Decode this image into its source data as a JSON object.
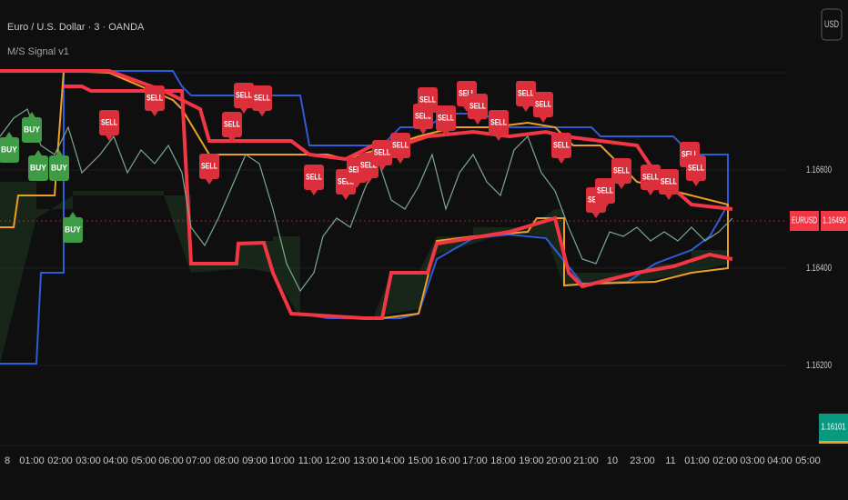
{
  "header": {
    "symbol": "Euro / U.S. Dollar · 3 · OANDA",
    "indicator": "M/S Signal v1",
    "currency": "USD"
  },
  "price_axis": {
    "labels": [
      "1.16600",
      "1.16400",
      "1.16200"
    ]
  },
  "price_tags": {
    "symbol": "EURUSD",
    "last": "1.16490",
    "other": "1.16101"
  },
  "time_axis": {
    "labels": [
      "8",
      "01:00",
      "02:00",
      "03:00",
      "04:00",
      "05:00",
      "06:00",
      "07:00",
      "08:00",
      "09:00",
      "10:00",
      "11:00",
      "12:00",
      "13:00",
      "14:00",
      "15:00",
      "16:00",
      "17:00",
      "18:00",
      "19:00",
      "20:00",
      "21:00",
      "10",
      "23:00",
      "11",
      "01:00",
      "02:00",
      "03:00",
      "04:00",
      "05:00"
    ]
  },
  "signals": [
    {
      "text": "BUY"
    },
    {
      "text": "BUY"
    },
    {
      "text": "BUY"
    },
    {
      "text": "BUY"
    },
    {
      "text": "BUY"
    },
    {
      "text": "SELL"
    },
    {
      "text": "SELL"
    },
    {
      "text": "SELL"
    },
    {
      "text": "SELL"
    },
    {
      "text": "SELL"
    },
    {
      "text": "SELL"
    },
    {
      "text": "SELL"
    },
    {
      "text": "SELL"
    },
    {
      "text": "SELL"
    },
    {
      "text": "SELL"
    },
    {
      "text": "SELL"
    },
    {
      "text": "SELL"
    },
    {
      "text": "SELL"
    },
    {
      "text": "SELL"
    },
    {
      "text": "SELL"
    },
    {
      "text": "SELL"
    },
    {
      "text": "SELL"
    },
    {
      "text": "SELL"
    },
    {
      "text": "SELL"
    },
    {
      "text": "SELL"
    },
    {
      "text": "SELL"
    },
    {
      "text": "SELL"
    },
    {
      "text": "SELL"
    },
    {
      "text": "SELL"
    },
    {
      "text": "SELL"
    },
    {
      "text": "SELL"
    },
    {
      "text": "SELL"
    },
    {
      "text": "SELL"
    }
  ]
}
